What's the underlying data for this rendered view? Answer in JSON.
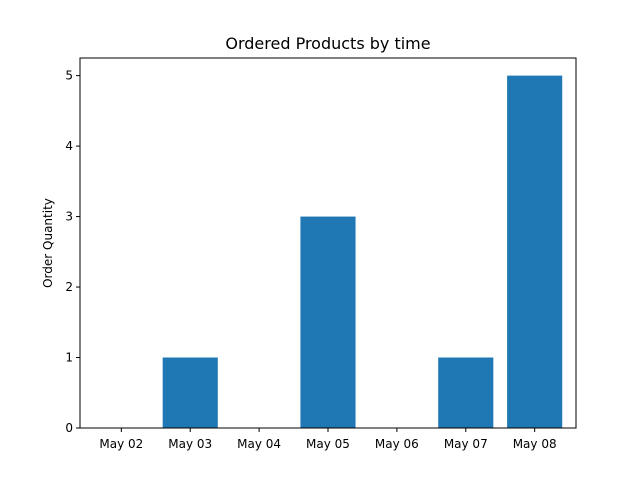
{
  "chart_data": {
    "type": "bar",
    "title": "Ordered Products by time",
    "xlabel": "",
    "ylabel": "Order Quantity",
    "categories": [
      "May 02",
      "May 03",
      "May 04",
      "May 05",
      "May 06",
      "May 07",
      "May 08"
    ],
    "values": [
      0,
      1,
      0,
      3,
      0,
      1,
      5
    ],
    "ylim": [
      0,
      5.25
    ],
    "yticks": [
      0,
      1,
      2,
      3,
      4,
      5
    ],
    "grid": false,
    "bar_color": "#1f77b4"
  }
}
